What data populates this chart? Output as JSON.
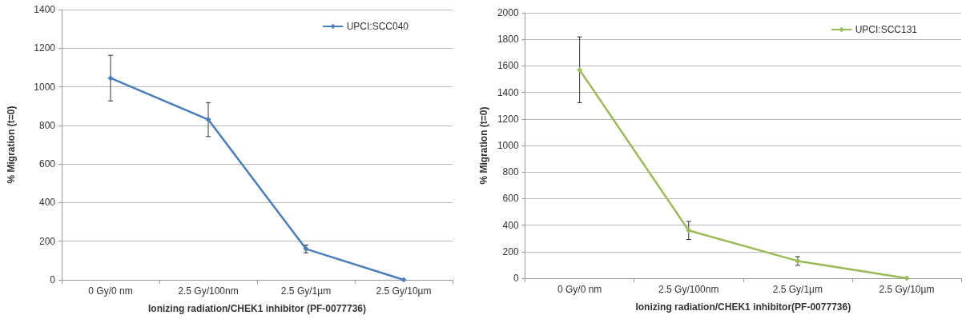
{
  "chart_data": [
    {
      "type": "line",
      "xlabel": "Ionizing radiation/CHEK1 inhibitor (PF-0077736)",
      "ylabel": "% Migration (t=0)",
      "categories": [
        "0 Gy/0 nm",
        "2.5 Gy/100nm",
        "2.5 Gy/1µm",
        "2.5 Gy/10µm"
      ],
      "series": [
        {
          "name": "UPCI:SCC040",
          "color": "#4a7ebb",
          "values": [
            1045,
            830,
            160,
            0
          ],
          "errors": [
            118,
            88,
            20,
            null
          ]
        }
      ],
      "ylim": [
        0,
        1400
      ],
      "yticks": [
        0,
        200,
        400,
        600,
        800,
        1000,
        1200,
        1400
      ],
      "grid": "y",
      "legend": "top right",
      "marker": "diamond",
      "line_style": "solid"
    },
    {
      "type": "line",
      "xlabel": "Ionizing radiation/CHEK1 inhibitor(PF-0077736)",
      "ylabel": "% Migration (t=0)",
      "categories": [
        "0 Gy/0 nm",
        "2.5 Gy/100nm",
        "2.5 Gy/1µm",
        "2.5 Gy/10µm"
      ],
      "series": [
        {
          "name": "UPCI:SCC131",
          "color": "#9bbb59",
          "values": [
            1570,
            360,
            130,
            0
          ],
          "errors": [
            248,
            68,
            33,
            null
          ]
        }
      ],
      "ylim": [
        0,
        2000
      ],
      "yticks": [
        0,
        200,
        400,
        600,
        800,
        1000,
        1200,
        1400,
        1600,
        1800,
        2000
      ],
      "grid": "y",
      "legend": "top right",
      "marker": "diamond",
      "line_style": "solid"
    }
  ]
}
